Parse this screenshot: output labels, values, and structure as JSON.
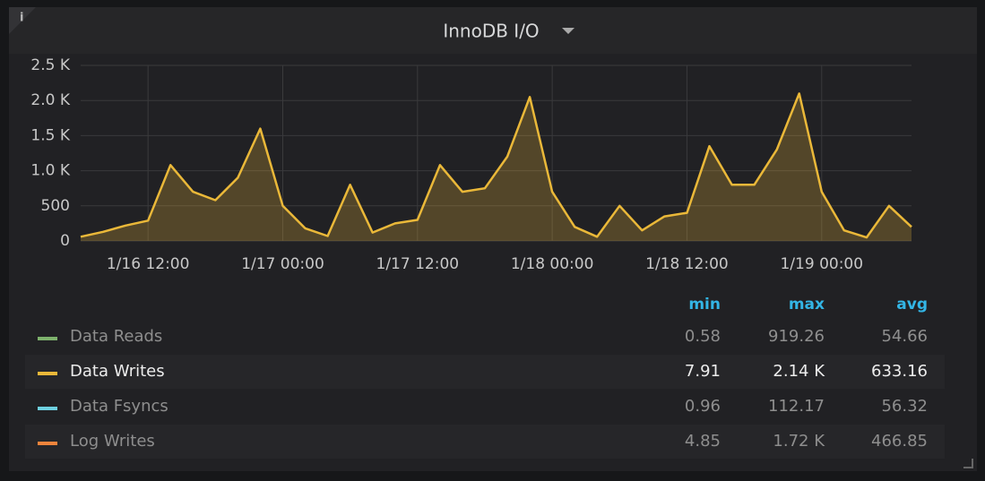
{
  "chart_data": {
    "type": "line",
    "title": "InnoDB I/O",
    "info_icon": "i",
    "x": [
      "1/16 06:00",
      "1/16 08:00",
      "1/16 10:00",
      "1/16 12:00",
      "1/16 14:00",
      "1/16 16:00",
      "1/16 18:00",
      "1/16 20:00",
      "1/16 22:00",
      "1/17 00:00",
      "1/17 02:00",
      "1/17 04:00",
      "1/17 06:00",
      "1/17 08:00",
      "1/17 10:00",
      "1/17 12:00",
      "1/17 14:00",
      "1/17 16:00",
      "1/17 18:00",
      "1/17 20:00",
      "1/17 22:00",
      "1/18 00:00",
      "1/18 02:00",
      "1/18 04:00",
      "1/18 06:00",
      "1/18 08:00",
      "1/18 10:00",
      "1/18 12:00",
      "1/18 14:00",
      "1/18 16:00",
      "1/18 18:00",
      "1/18 20:00",
      "1/18 22:00",
      "1/19 00:00",
      "1/19 02:00",
      "1/19 04:00",
      "1/19 06:00",
      "1/19 08:00"
    ],
    "xticks": [
      "1/16 12:00",
      "1/17 00:00",
      "1/17 12:00",
      "1/18 00:00",
      "1/18 12:00",
      "1/19 00:00"
    ],
    "ylim": [
      0,
      2500
    ],
    "yticks": [
      0,
      500,
      {
        "value": 1000,
        "label": "1.0 K"
      },
      {
        "value": 1500,
        "label": "1.5 K"
      },
      {
        "value": 2000,
        "label": "2.0 K"
      },
      {
        "value": 2500,
        "label": "2.5 K"
      }
    ],
    "grid": true,
    "area_fill": true,
    "legend_columns": [
      "min",
      "max",
      "avg"
    ],
    "series": [
      {
        "name": "Data Reads",
        "color": "#7eb26d",
        "hidden": true,
        "stats": [
          0.58,
          919.26,
          54.66
        ]
      },
      {
        "name": "Data Writes",
        "color": "#eab839",
        "hidden": false,
        "stats": [
          7.91,
          {
            "value": 2140,
            "label": "2.14 K"
          },
          633.16
        ],
        "values": [
          60,
          130,
          220,
          290,
          1080,
          700,
          580,
          900,
          1600,
          500,
          180,
          70,
          800,
          120,
          250,
          300,
          1080,
          700,
          750,
          1200,
          2050,
          700,
          200,
          60,
          500,
          150,
          350,
          400,
          1350,
          800,
          800,
          1300,
          2100,
          700,
          150,
          50,
          500,
          200
        ]
      },
      {
        "name": "Data Fsyncs",
        "color": "#6ed0e0",
        "hidden": true,
        "stats": [
          0.96,
          112.17,
          56.32
        ]
      },
      {
        "name": "Log Writes",
        "color": "#ef843c",
        "hidden": true,
        "stats": [
          4.85,
          {
            "value": 1720,
            "label": "1.72 K"
          },
          466.85
        ]
      }
    ]
  }
}
